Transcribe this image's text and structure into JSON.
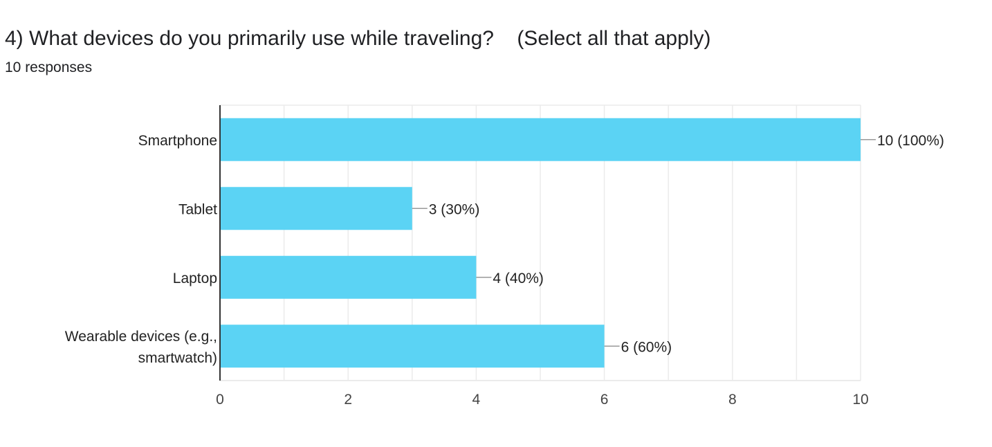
{
  "question": {
    "title": "4) What devices do you primarily use while traveling?    (Select all that apply)",
    "responses": "10 responses"
  },
  "colors": {
    "bar": "#5bd3f4",
    "grid": "#ebebeb",
    "axis": "#333333",
    "leader": "#999999"
  },
  "chart_data": {
    "type": "bar",
    "orientation": "horizontal",
    "categories": [
      [
        "Smartphone"
      ],
      [
        "Tablet"
      ],
      [
        "Laptop"
      ],
      [
        "Wearable devices (e.g.,",
        "smartwatch)"
      ]
    ],
    "values": [
      10,
      3,
      4,
      6
    ],
    "data_labels": [
      "10 (100%)",
      "3 (30%)",
      "4 (40%)",
      "6 (60%)"
    ],
    "xlim": [
      0,
      10
    ],
    "xticks": [
      0,
      2,
      4,
      6,
      8,
      10
    ],
    "grid": true,
    "legend": "none"
  }
}
